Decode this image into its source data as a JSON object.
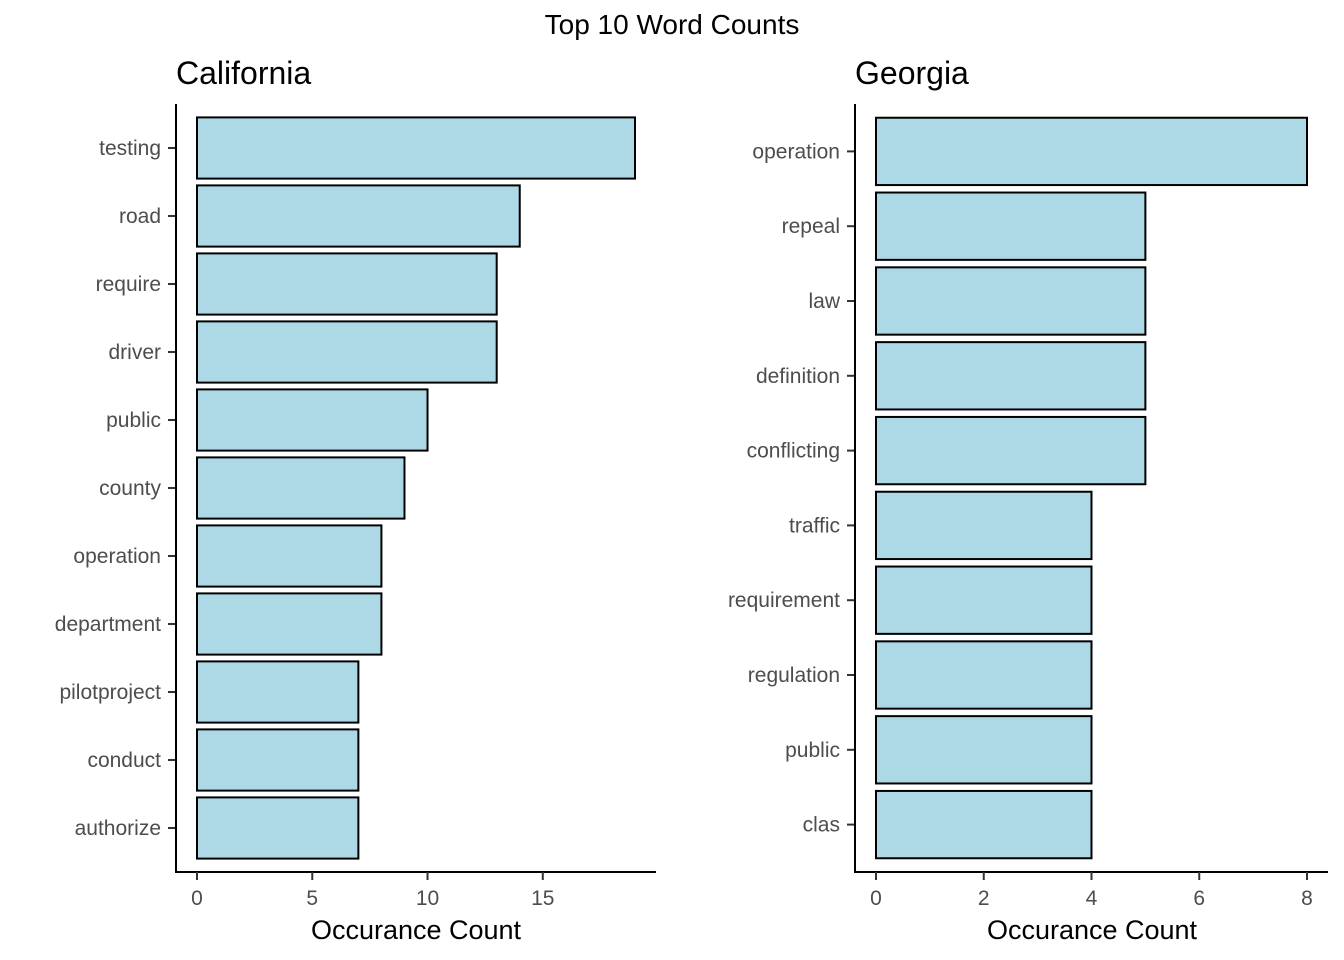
{
  "title": "Top 10 Word Counts",
  "chart_data": [
    {
      "type": "bar",
      "orientation": "horizontal",
      "title": "California",
      "xlabel": "Occurance Count",
      "ylabel": "",
      "xlim": [
        0,
        19
      ],
      "x_ticks": [
        0,
        5,
        10,
        15
      ],
      "grid": false,
      "bar_color": "#add8e6",
      "categories": [
        "testing",
        "road",
        "require",
        "driver",
        "public",
        "county",
        "operation",
        "department",
        "pilotproject",
        "conduct",
        "authorize"
      ],
      "values": [
        19,
        14,
        13,
        13,
        10,
        9,
        8,
        8,
        7,
        7,
        7
      ]
    },
    {
      "type": "bar",
      "orientation": "horizontal",
      "title": "Georgia",
      "xlabel": "Occurance Count",
      "ylabel": "",
      "xlim": [
        0,
        8
      ],
      "x_ticks": [
        0,
        2,
        4,
        6,
        8
      ],
      "grid": false,
      "bar_color": "#add8e6",
      "categories": [
        "operation",
        "repeal",
        "law",
        "definition",
        "conflicting",
        "traffic",
        "requirement",
        "regulation",
        "public",
        "clas"
      ],
      "values": [
        8,
        5,
        5,
        5,
        5,
        4,
        4,
        4,
        4,
        4
      ]
    }
  ]
}
